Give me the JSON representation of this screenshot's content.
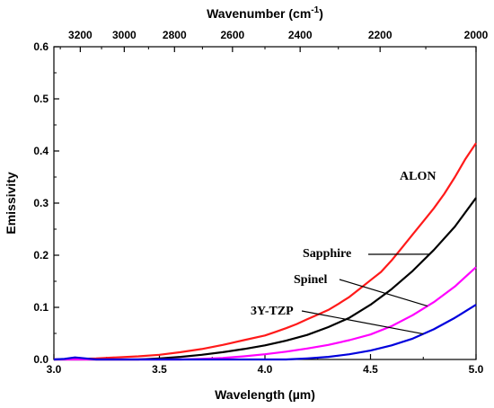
{
  "chart_data": {
    "type": "line",
    "xlabel": "Wavelength (µm)",
    "ylabel": "Emissivity",
    "top_axis_label": "Wavenumber (cm",
    "top_axis_label_sup": "-1",
    "top_axis_label_close": ")",
    "xlim": [
      3.0,
      5.0
    ],
    "ylim": [
      0,
      0.6
    ],
    "x_ticks": [
      3.0,
      3.5,
      4.0,
      4.5,
      5.0
    ],
    "x_tick_labels": [
      "3.0",
      "3.5",
      "4.0",
      "4.5",
      "5.0"
    ],
    "y_ticks": [
      0.0,
      0.1,
      0.2,
      0.3,
      0.4,
      0.5,
      0.6
    ],
    "y_tick_labels": [
      "0.0",
      "0.1",
      "0.2",
      "0.3",
      "0.4",
      "0.5",
      "0.6"
    ],
    "top_ticks": [
      3200,
      3000,
      2800,
      2600,
      2400,
      2200,
      2000
    ],
    "top_tick_labels": [
      "3200",
      "3000",
      "2800",
      "2600",
      "2400",
      "2200",
      "2000"
    ],
    "grid": false,
    "series": [
      {
        "name": "ALON",
        "color": "#ff1a1a",
        "x": [
          3.0,
          3.2,
          3.4,
          3.5,
          3.6,
          3.7,
          3.8,
          3.9,
          4.0,
          4.05,
          4.1,
          4.15,
          4.2,
          4.25,
          4.3,
          4.35,
          4.4,
          4.45,
          4.5,
          4.55,
          4.6,
          4.65,
          4.7,
          4.75,
          4.8,
          4.85,
          4.9,
          4.95,
          5.0
        ],
        "values": [
          0.0,
          0.002,
          0.006,
          0.009,
          0.014,
          0.02,
          0.028,
          0.037,
          0.046,
          0.053,
          0.06,
          0.068,
          0.077,
          0.086,
          0.095,
          0.107,
          0.12,
          0.136,
          0.152,
          0.168,
          0.19,
          0.215,
          0.24,
          0.265,
          0.29,
          0.318,
          0.35,
          0.385,
          0.415
        ]
      },
      {
        "name": "Sapphire",
        "color": "#000000",
        "x": [
          3.0,
          3.4,
          3.5,
          3.6,
          3.7,
          3.8,
          3.9,
          4.0,
          4.1,
          4.2,
          4.3,
          4.4,
          4.5,
          4.6,
          4.7,
          4.8,
          4.9,
          5.0
        ],
        "values": [
          0.0,
          0.0,
          0.002,
          0.005,
          0.009,
          0.014,
          0.02,
          0.027,
          0.036,
          0.047,
          0.062,
          0.08,
          0.105,
          0.135,
          0.17,
          0.21,
          0.255,
          0.31
        ]
      },
      {
        "name": "Spinel",
        "color": "#ff00ff",
        "x": [
          3.0,
          3.6,
          3.7,
          3.8,
          3.9,
          4.0,
          4.1,
          4.2,
          4.3,
          4.4,
          4.5,
          4.6,
          4.7,
          4.8,
          4.9,
          5.0
        ],
        "values": [
          0.0,
          0.0,
          0.001,
          0.003,
          0.006,
          0.01,
          0.015,
          0.021,
          0.028,
          0.037,
          0.048,
          0.064,
          0.085,
          0.11,
          0.14,
          0.177
        ]
      },
      {
        "name": "3Y-TZP",
        "color": "#0000dd",
        "x": [
          3.0,
          3.05,
          3.1,
          3.15,
          3.2,
          4.1,
          4.2,
          4.3,
          4.4,
          4.5,
          4.6,
          4.7,
          4.8,
          4.9,
          5.0
        ],
        "values": [
          0.0,
          0.001,
          0.004,
          0.002,
          0.0,
          0.0,
          0.002,
          0.005,
          0.01,
          0.017,
          0.027,
          0.04,
          0.058,
          0.08,
          0.105
        ]
      }
    ],
    "annotations": [
      {
        "text": "ALON",
        "series": "ALON"
      },
      {
        "text": "Sapphire",
        "series": "Sapphire"
      },
      {
        "text": "Spinel",
        "series": "Spinel"
      },
      {
        "text": "3Y-TZP",
        "series": "3Y-TZP"
      }
    ]
  }
}
